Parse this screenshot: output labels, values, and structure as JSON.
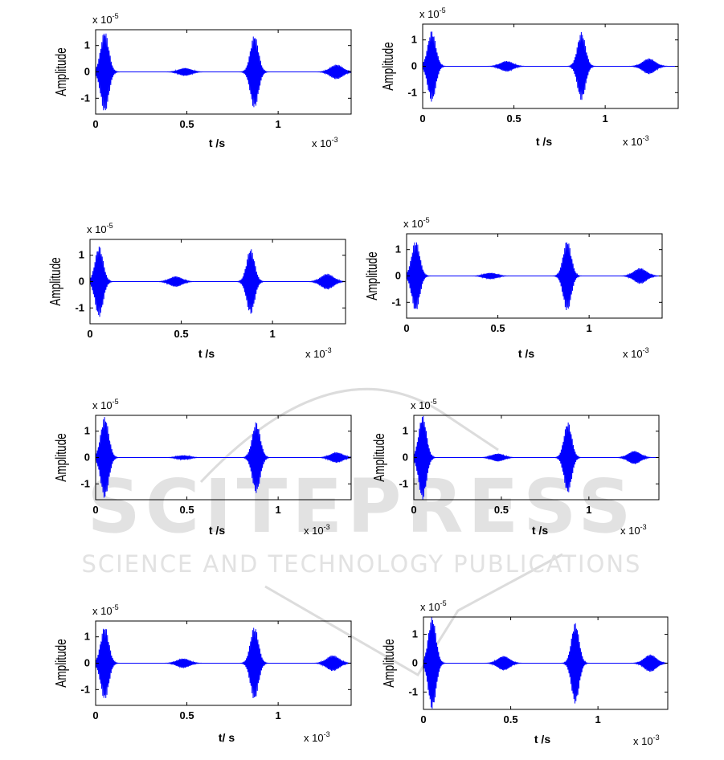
{
  "watermark": {
    "logo_text": "SCITEPRESS",
    "tagline": "SCIENCE AND TECHNOLOGY PUBLICATIONS",
    "color": "#d9d9d9"
  },
  "style": {
    "line_color": "#0000ff",
    "axis_color": "#000000"
  },
  "chart_data": [
    {
      "type": "line",
      "xlabel": "t /s",
      "ylabel": "Amplitude",
      "x_multiplier": "x 10",
      "x_exponent": "-3",
      "y_multiplier": "x 10",
      "y_exponent": "-5",
      "x_ticks": [
        "0",
        "0.5",
        "1"
      ],
      "y_ticks": [
        "1",
        "0",
        "-1"
      ],
      "xlim": [
        0,
        1.4
      ],
      "ylim": [
        -1.6,
        1.6
      ],
      "grid": false,
      "bursts": [
        {
          "center": 0.05,
          "amplitude": 1.55
        },
        {
          "center": 0.49,
          "amplitude": 0.15
        },
        {
          "center": 0.87,
          "amplitude": 1.4
        },
        {
          "center": 1.32,
          "amplitude": 0.28
        }
      ]
    },
    {
      "type": "line",
      "xlabel": "t /s",
      "ylabel": "Amplitude",
      "x_multiplier": "x 10",
      "x_exponent": "-3",
      "y_multiplier": "x 10",
      "y_exponent": "-5",
      "x_ticks": [
        "0",
        "0.5",
        "1"
      ],
      "y_ticks": [
        "1",
        "0",
        "-1"
      ],
      "xlim": [
        0,
        1.4
      ],
      "ylim": [
        -1.6,
        1.6
      ],
      "grid": false,
      "bursts": [
        {
          "center": 0.05,
          "amplitude": 1.35
        },
        {
          "center": 0.46,
          "amplitude": 0.2
        },
        {
          "center": 0.87,
          "amplitude": 1.3
        },
        {
          "center": 1.24,
          "amplitude": 0.3
        }
      ]
    },
    {
      "type": "line",
      "xlabel": "t /s",
      "ylabel": "Amplitude",
      "x_multiplier": "x 10",
      "x_exponent": "-3",
      "y_multiplier": "x 10",
      "y_exponent": "-5",
      "x_ticks": [
        "0",
        "0.5",
        "1"
      ],
      "y_ticks": [
        "1",
        "0",
        "-1"
      ],
      "xlim": [
        0,
        1.4
      ],
      "ylim": [
        -1.6,
        1.6
      ],
      "grid": false,
      "bursts": [
        {
          "center": 0.05,
          "amplitude": 1.35
        },
        {
          "center": 0.47,
          "amplitude": 0.2
        },
        {
          "center": 0.88,
          "amplitude": 1.25
        },
        {
          "center": 1.3,
          "amplitude": 0.3
        }
      ]
    },
    {
      "type": "line",
      "xlabel": "t /s",
      "ylabel": "Amplitude",
      "x_multiplier": "x 10",
      "x_exponent": "-3",
      "y_multiplier": "x 10",
      "y_exponent": "-5",
      "x_ticks": [
        "0",
        "0.5",
        "1"
      ],
      "y_ticks": [
        "1",
        "0",
        "-1"
      ],
      "xlim": [
        0,
        1.4
      ],
      "ylim": [
        -1.6,
        1.6
      ],
      "grid": false,
      "bursts": [
        {
          "center": 0.05,
          "amplitude": 1.35
        },
        {
          "center": 0.46,
          "amplitude": 0.12
        },
        {
          "center": 0.88,
          "amplitude": 1.35
        },
        {
          "center": 1.28,
          "amplitude": 0.3
        }
      ]
    },
    {
      "type": "line",
      "xlabel": "t /s",
      "ylabel": "Amplitude",
      "x_multiplier": "x 10",
      "x_exponent": "-3",
      "y_multiplier": "x 10",
      "y_exponent": "-5",
      "x_ticks": [
        "0",
        "0.5",
        "1"
      ],
      "y_ticks": [
        "1",
        "0",
        "-1"
      ],
      "xlim": [
        0,
        1.4
      ],
      "ylim": [
        -1.6,
        1.6
      ],
      "grid": false,
      "bursts": [
        {
          "center": 0.05,
          "amplitude": 1.55
        },
        {
          "center": 0.48,
          "amplitude": 0.08
        },
        {
          "center": 0.88,
          "amplitude": 1.35
        },
        {
          "center": 1.32,
          "amplitude": 0.2
        }
      ]
    },
    {
      "type": "line",
      "xlabel": "t /s",
      "ylabel": "Amplitude",
      "x_multiplier": "x 10",
      "x_exponent": "-3",
      "y_multiplier": "x 10",
      "y_exponent": "-5",
      "x_ticks": [
        "0",
        "0.5",
        "1"
      ],
      "y_ticks": [
        "1",
        "0",
        "-1"
      ],
      "xlim": [
        0,
        1.4
      ],
      "ylim": [
        -1.6,
        1.6
      ],
      "grid": false,
      "bursts": [
        {
          "center": 0.05,
          "amplitude": 1.6
        },
        {
          "center": 0.48,
          "amplitude": 0.15
        },
        {
          "center": 0.88,
          "amplitude": 1.35
        },
        {
          "center": 1.26,
          "amplitude": 0.25
        }
      ]
    },
    {
      "type": "line",
      "xlabel": "t/ s",
      "ylabel": "Amplitude",
      "x_multiplier": "x 10",
      "x_exponent": "-3",
      "y_multiplier": "x 10",
      "y_exponent": "-5",
      "x_ticks": [
        "0",
        "0.5",
        "1"
      ],
      "y_ticks": [
        "1",
        "0",
        "-1"
      ],
      "xlim": [
        0,
        1.4
      ],
      "ylim": [
        -1.6,
        1.6
      ],
      "grid": false,
      "bursts": [
        {
          "center": 0.05,
          "amplitude": 1.4
        },
        {
          "center": 0.48,
          "amplitude": 0.18
        },
        {
          "center": 0.87,
          "amplitude": 1.4
        },
        {
          "center": 1.3,
          "amplitude": 0.3
        }
      ]
    },
    {
      "type": "line",
      "xlabel": "t /s",
      "ylabel": "Amplitude",
      "x_multiplier": "x 10",
      "x_exponent": "-3",
      "y_multiplier": "x 10",
      "y_exponent": "-5",
      "x_ticks": [
        "0",
        "0.5",
        "1"
      ],
      "y_ticks": [
        "1",
        "0",
        "-1"
      ],
      "xlim": [
        0,
        1.4
      ],
      "ylim": [
        -1.6,
        1.6
      ],
      "grid": false,
      "bursts": [
        {
          "center": 0.05,
          "amplitude": 1.6
        },
        {
          "center": 0.46,
          "amplitude": 0.25
        },
        {
          "center": 0.87,
          "amplitude": 1.4
        },
        {
          "center": 1.3,
          "amplitude": 0.3
        }
      ]
    }
  ]
}
